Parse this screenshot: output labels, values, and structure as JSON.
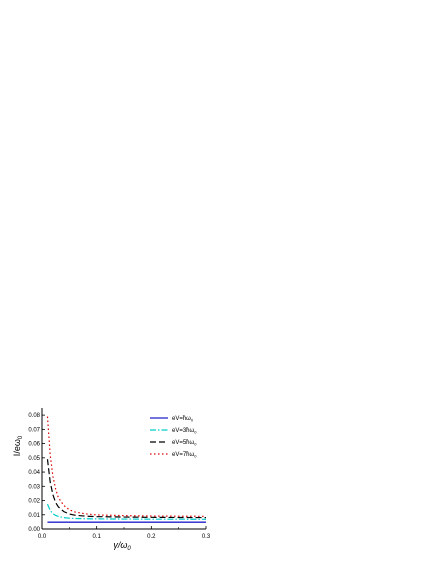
{
  "chart_data": {
    "type": "line",
    "xlabel": "γ/ω",
    "xlabel_sub": "0",
    "ylabel": "I/eω",
    "ylabel_sub": "0",
    "xlim": [
      0,
      0.3
    ],
    "ylim": [
      0,
      0.085
    ],
    "xticks": [
      "0.0",
      "0.1",
      "0.2",
      "0.3"
    ],
    "xtick_values": [
      0,
      0.1,
      0.2,
      0.3
    ],
    "yticks": [
      "0.00",
      "0.01",
      "0.02",
      "0.03",
      "0.04",
      "0.05",
      "0.06",
      "0.07",
      "0.08"
    ],
    "ytick_values": [
      0,
      0.01,
      0.02,
      0.03,
      0.04,
      0.05,
      0.06,
      0.07,
      0.08
    ],
    "grid": false,
    "legend_position": "top-right",
    "x": [
      0.01,
      0.015,
      0.02,
      0.025,
      0.03,
      0.04,
      0.05,
      0.06,
      0.08,
      0.1,
      0.15,
      0.2,
      0.25,
      0.3
    ],
    "series": [
      {
        "name": "eV=ħω",
        "sub": "0",
        "color": "#2222cc",
        "dash": "solid",
        "values": [
          0.0048,
          0.0048,
          0.0048,
          0.0048,
          0.0048,
          0.0048,
          0.0048,
          0.0048,
          0.0048,
          0.0048,
          0.0048,
          0.0048,
          0.0048,
          0.0048
        ]
      },
      {
        "name": "eV=3ħω",
        "sub": "0",
        "color": "#00cccc",
        "dash": "dashdot",
        "values": [
          0.0175,
          0.013,
          0.0108,
          0.0095,
          0.0088,
          0.008,
          0.0076,
          0.0074,
          0.0072,
          0.0071,
          0.007,
          0.0069,
          0.0069,
          0.0068
        ]
      },
      {
        "name": "eV=5ħω",
        "sub": "0",
        "color": "#000000",
        "dash": "dash",
        "values": [
          0.049,
          0.033,
          0.024,
          0.0185,
          0.0155,
          0.0122,
          0.0105,
          0.0097,
          0.009,
          0.0087,
          0.0084,
          0.0082,
          0.0081,
          0.008
        ]
      },
      {
        "name": "eV=7ħω",
        "sub": "0",
        "color": "#dd0000",
        "dash": "dot",
        "values": [
          0.079,
          0.052,
          0.037,
          0.028,
          0.022,
          0.0165,
          0.0135,
          0.012,
          0.0106,
          0.0099,
          0.0094,
          0.0091,
          0.009,
          0.0089
        ]
      }
    ]
  }
}
